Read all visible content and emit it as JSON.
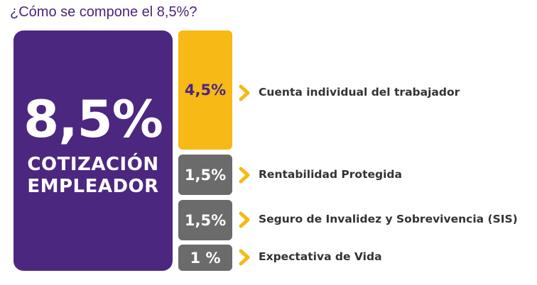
{
  "title": "¿Cómo se compone el 8,5%?",
  "main": {
    "value": "8,5%",
    "label_line1": "COTIZACIÓN",
    "label_line2": "EMPLEADOR"
  },
  "components": [
    {
      "value": "4,5%",
      "label": "Cuenta individual del trabajador"
    },
    {
      "value": "1,5%",
      "label": "Rentabilidad Protegida"
    },
    {
      "value": "1,5%",
      "label": "Seguro de Invalidez y Sobrevivencia (SIS)"
    },
    {
      "value": "1 %",
      "label": "Expectativa de Vida"
    }
  ],
  "colors": {
    "purple": "#4c2780",
    "yellow": "#f6b916",
    "gray": "#6b6b6b"
  },
  "icons": {
    "arrow": "chevron-right-icon"
  }
}
